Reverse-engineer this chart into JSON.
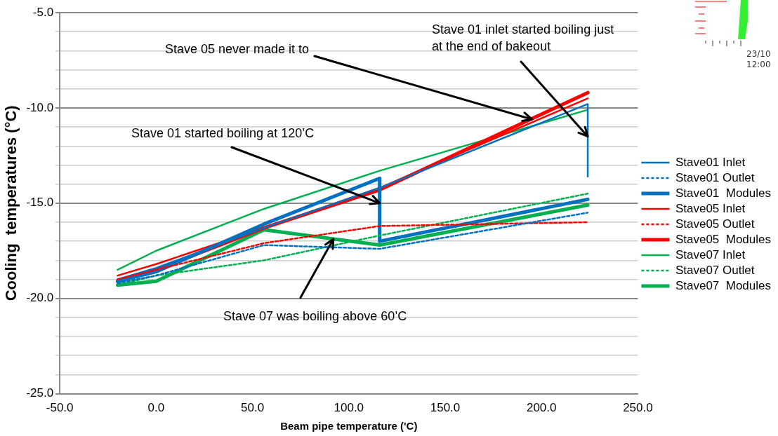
{
  "chart_data": {
    "type": "line",
    "xlabel": "Beam pipe temperature ('C)",
    "ylabel": "Cooling  temperatures (°C)",
    "xlim": [
      -50,
      250
    ],
    "xticks": [
      {
        "value": -50,
        "label": "-50.0"
      },
      {
        "value": 0,
        "label": "0.0"
      },
      {
        "value": 50,
        "label": "50.0"
      },
      {
        "value": 100,
        "label": "100.0"
      },
      {
        "value": 150,
        "label": "150.0"
      },
      {
        "value": 200,
        "label": "200.0"
      },
      {
        "value": 250,
        "label": "250.0"
      }
    ],
    "ylim": [
      -25,
      -5
    ],
    "yticks": [
      {
        "value": -25,
        "label": "-25.0"
      },
      {
        "value": -24,
        "label": null
      },
      {
        "value": -23,
        "label": null
      },
      {
        "value": -22,
        "label": null
      },
      {
        "value": -21,
        "label": null
      },
      {
        "value": -20,
        "label": "-20.0"
      },
      {
        "value": -19,
        "label": null
      },
      {
        "value": -18,
        "label": null
      },
      {
        "value": -17,
        "label": null
      },
      {
        "value": -16,
        "label": null
      },
      {
        "value": -15,
        "label": "-15.0"
      },
      {
        "value": -14,
        "label": null
      },
      {
        "value": -13,
        "label": null
      },
      {
        "value": -12,
        "label": null
      },
      {
        "value": -11,
        "label": null
      },
      {
        "value": -10,
        "label": "-10.0"
      },
      {
        "value": -9,
        "label": null
      },
      {
        "value": -8,
        "label": null
      },
      {
        "value": -7,
        "label": null
      },
      {
        "value": -6,
        "label": null
      },
      {
        "value": -5,
        "label": "-5.0"
      }
    ],
    "grid": "y",
    "legend": "right",
    "marker": "none",
    "series": [
      {
        "name": "Stave01 Inlet",
        "color": "#0070c0",
        "line_style": "solid",
        "x": [
          -20,
          0,
          56,
          116,
          224,
          224
        ],
        "values": [
          -19.0,
          -18.4,
          -16.3,
          -14.2,
          -9.8,
          -13.6
        ]
      },
      {
        "name": "Stave01 Outlet",
        "color": "#0070c0",
        "line_style": "dashed",
        "x": [
          -20,
          0,
          56,
          116,
          224
        ],
        "values": [
          -19.2,
          -18.8,
          -17.2,
          -17.4,
          -15.5
        ]
      },
      {
        "name": "Stave01  Modules",
        "color": "#0070c0",
        "line_style": "solid",
        "x": [
          -20,
          0,
          56,
          116,
          116,
          224
        ],
        "values": [
          -19.1,
          -18.6,
          -16.1,
          -13.7,
          -17.0,
          -14.8
        ]
      },
      {
        "name": "Stave05 Inlet",
        "color": "#ff0000",
        "line_style": "solid",
        "x": [
          -20,
          0,
          56,
          116,
          224
        ],
        "values": [
          -18.8,
          -18.2,
          -16.3,
          -14.2,
          -9.5
        ]
      },
      {
        "name": "Stave05 Outlet",
        "color": "#ff0000",
        "line_style": "dashed",
        "x": [
          -20,
          0,
          56,
          116,
          224
        ],
        "values": [
          -19.0,
          -18.5,
          -17.1,
          -16.2,
          -16.0
        ]
      },
      {
        "name": "Stave05  Modules",
        "color": "#ff0000",
        "line_style": "solid",
        "x": [
          -20,
          0,
          56,
          116,
          224
        ],
        "values": [
          -19.1,
          -18.5,
          -16.3,
          -14.3,
          -9.2
        ]
      },
      {
        "name": "Stave07 Inlet",
        "color": "#00b050",
        "line_style": "solid",
        "x": [
          -20,
          0,
          56,
          116,
          224
        ],
        "values": [
          -18.5,
          -17.5,
          -15.3,
          -13.3,
          -10.1
        ]
      },
      {
        "name": "Stave07 Outlet",
        "color": "#00b050",
        "line_style": "dashed",
        "x": [
          -20,
          0,
          56,
          116,
          224
        ],
        "values": [
          -19.3,
          -18.8,
          -18.0,
          -16.7,
          -14.5
        ]
      },
      {
        "name": "Stave07  Modules",
        "color": "#00b050",
        "line_style": "solid",
        "x": [
          -20,
          0,
          56,
          116,
          224
        ],
        "values": [
          -19.3,
          -19.1,
          -16.4,
          -17.2,
          -15.1
        ]
      }
    ],
    "annotations": [
      {
        "text": "Stave 05 never made it to",
        "x": 195,
        "y": -10.6
      },
      {
        "text": "Stave 01 inlet started boiling just\nat the end of bakeout",
        "x": 224,
        "y": -11.5
      },
      {
        "text": "Stave 01 started boiling at 120’C",
        "x": 116,
        "y": -15.0
      },
      {
        "text": "Stave 07 was boiling above 60’C",
        "x": 92,
        "y": -16.9
      },
      "23/10\n12:00"
    ]
  }
}
